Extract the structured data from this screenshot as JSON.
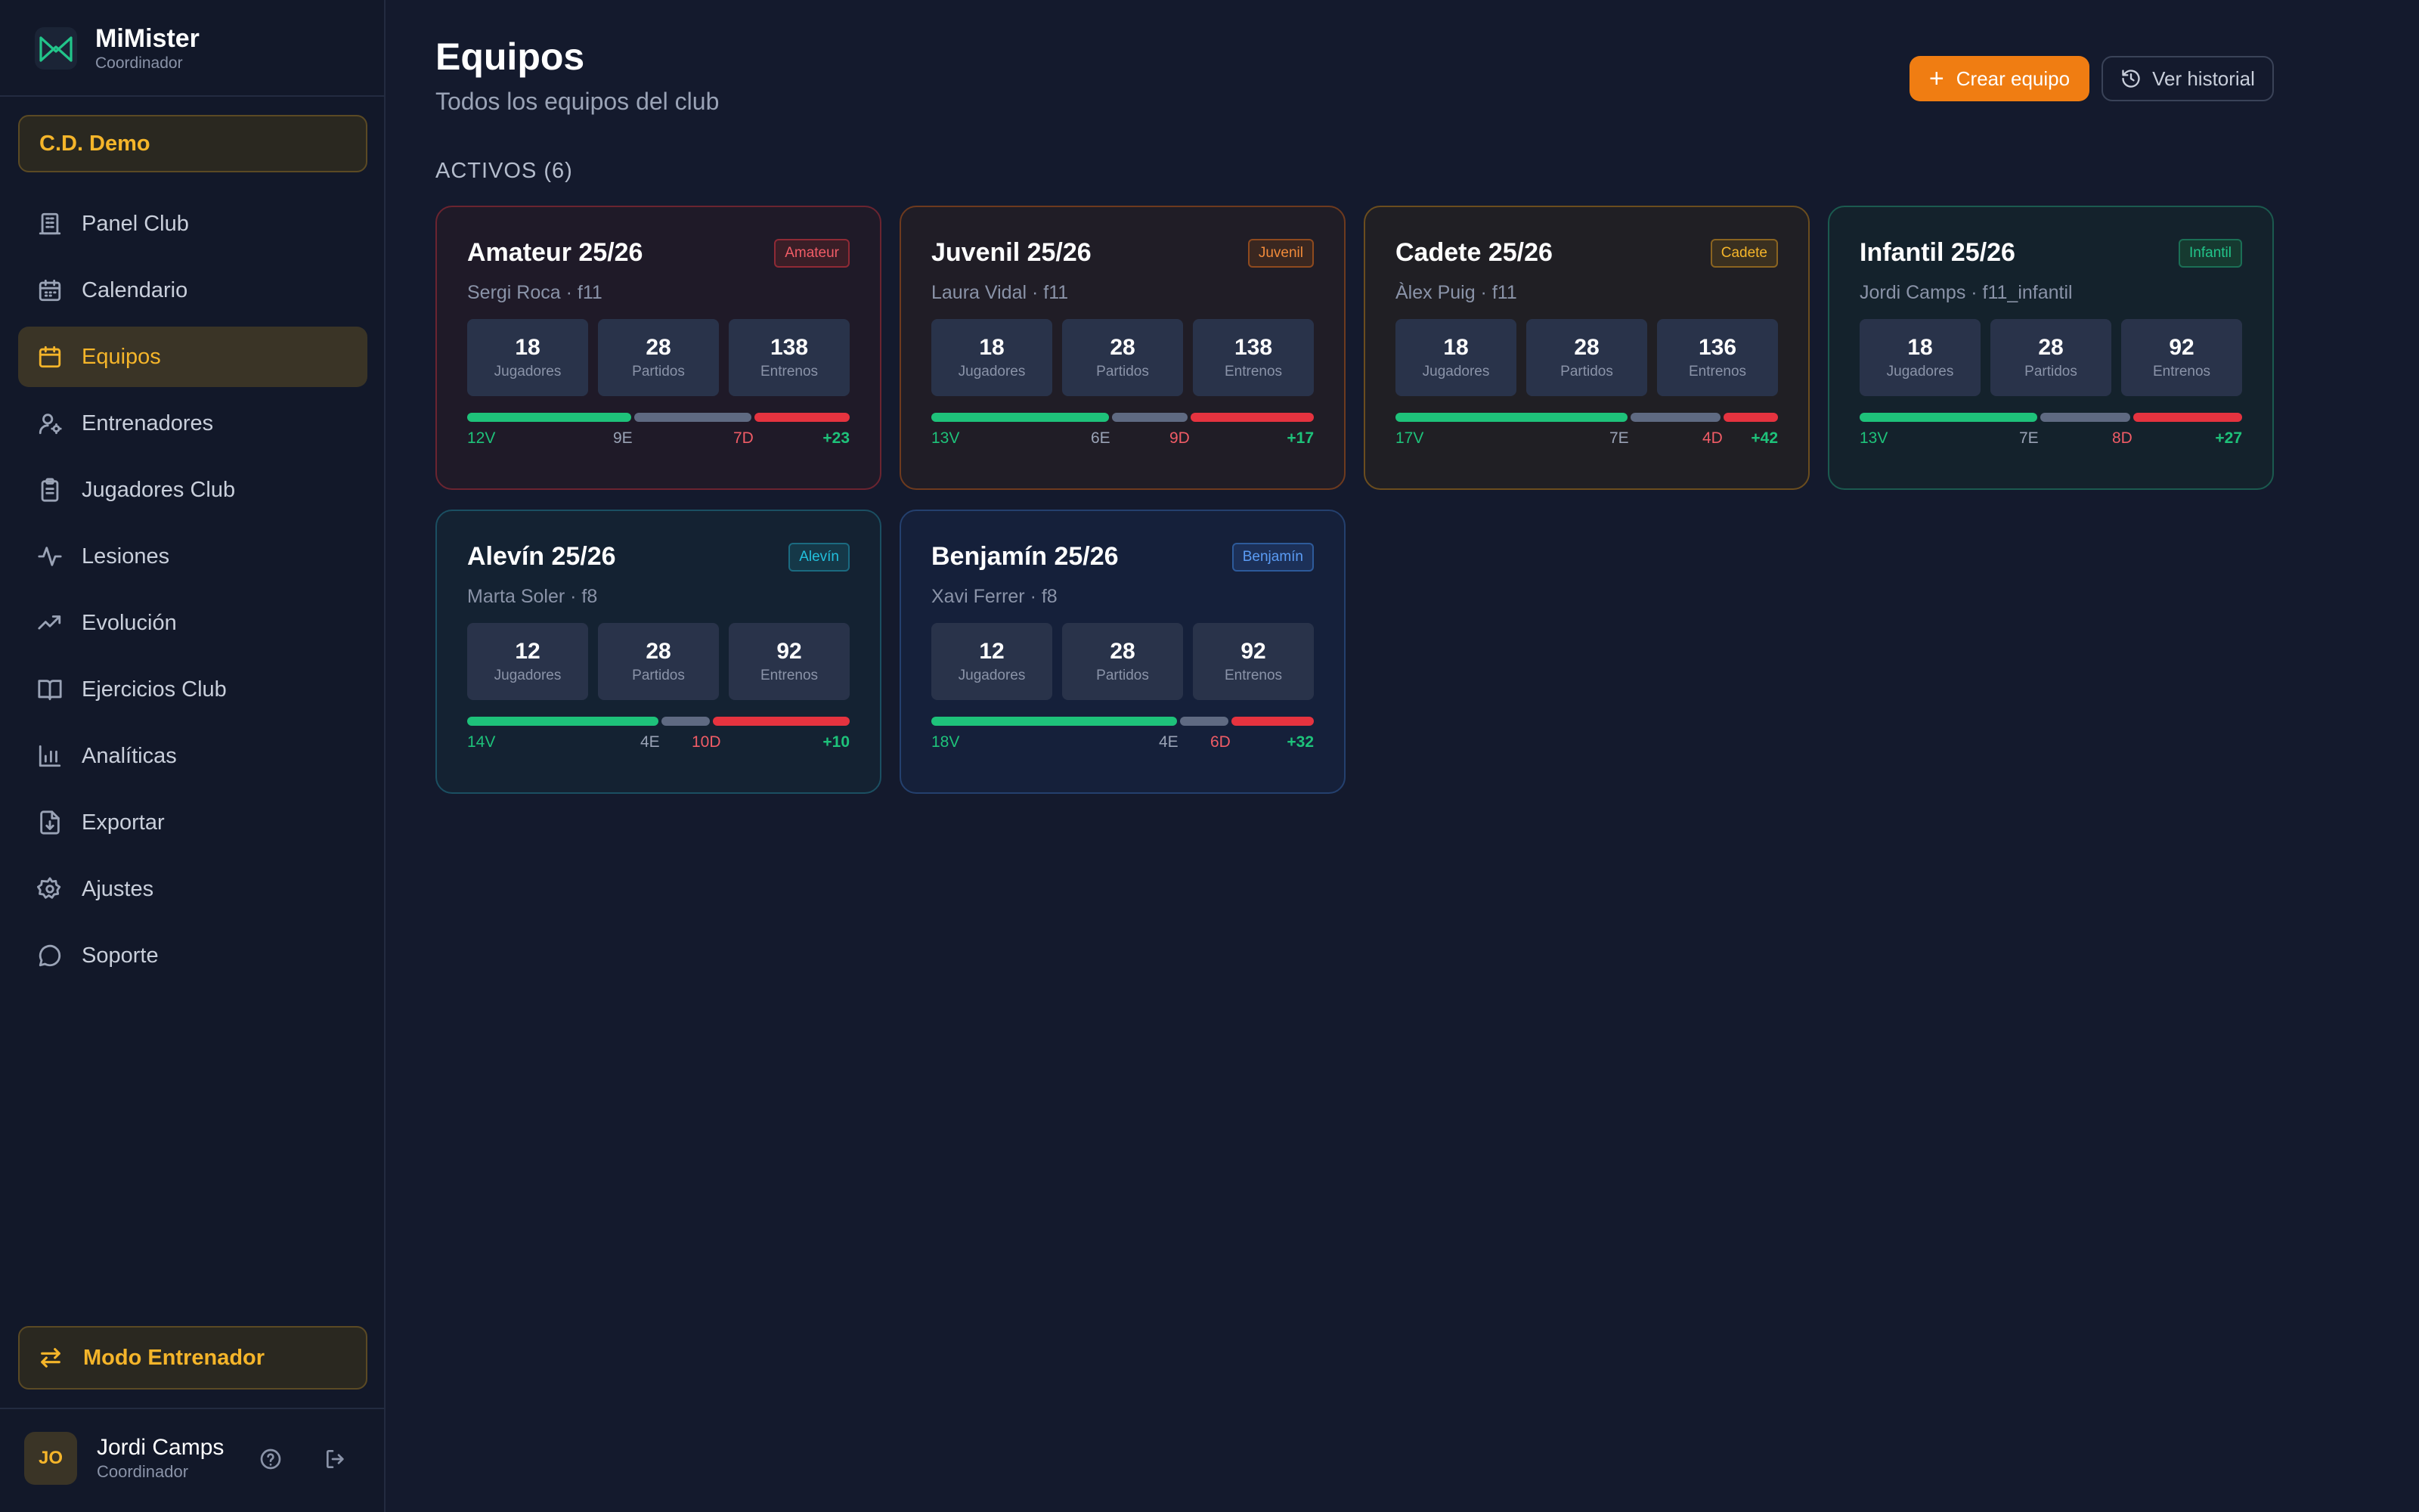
{
  "brand": {
    "name": "MiMister",
    "role": "Coordinador"
  },
  "club": {
    "name": "C.D. Demo"
  },
  "nav": [
    {
      "label": "Panel Club",
      "icon": "building-icon",
      "active": false
    },
    {
      "label": "Calendario",
      "icon": "calendar-icon",
      "active": false
    },
    {
      "label": "Equipos",
      "icon": "calendar-icon",
      "active": true
    },
    {
      "label": "Entrenadores",
      "icon": "user-cog-icon",
      "active": false
    },
    {
      "label": "Jugadores Club",
      "icon": "clipboard-icon",
      "active": false
    },
    {
      "label": "Lesiones",
      "icon": "activity-icon",
      "active": false
    },
    {
      "label": "Evolución",
      "icon": "trending-up-icon",
      "active": false
    },
    {
      "label": "Ejercicios Club",
      "icon": "book-icon",
      "active": false
    },
    {
      "label": "Analíticas",
      "icon": "bar-chart-icon",
      "active": false
    },
    {
      "label": "Exportar",
      "icon": "file-download-icon",
      "active": false
    },
    {
      "label": "Ajustes",
      "icon": "gear-icon",
      "active": false
    },
    {
      "label": "Soporte",
      "icon": "message-icon",
      "active": false
    }
  ],
  "mode_button": {
    "label": "Modo Entrenador"
  },
  "user": {
    "initials": "JO",
    "name": "Jordi Camps",
    "role": "Coordinador"
  },
  "header": {
    "title": "Equipos",
    "subtitle": "Todos los equipos del club",
    "create_label": "Crear equipo",
    "history_label": "Ver historial"
  },
  "section": {
    "label": "ACTIVOS (6)"
  },
  "stat_labels": {
    "players": "Jugadores",
    "matches": "Partidos",
    "trainings": "Entrenos"
  },
  "teams": [
    {
      "name": "Amateur 25/26",
      "badge": "Amateur",
      "coach": "Sergi Roca · f11",
      "players": "18",
      "matches": "28",
      "trainings": "138",
      "wins": 12,
      "draws": 9,
      "losses": 7,
      "w_label": "12V",
      "d_label": "9E",
      "l_label": "7D",
      "diff": "+23",
      "border": "#6b2430",
      "bg": "#1f1a28",
      "badge_color": "#f05c66",
      "badge_border": "#8f2a35",
      "badge_bg": "#3a1e27"
    },
    {
      "name": "Juvenil 25/26",
      "badge": "Juvenil",
      "coach": "Laura Vidal · f11",
      "players": "18",
      "matches": "28",
      "trainings": "138",
      "wins": 13,
      "draws": 6,
      "losses": 9,
      "w_label": "13V",
      "d_label": "6E",
      "l_label": "9D",
      "diff": "+17",
      "border": "#6e3a1e",
      "bg": "#201d26",
      "badge_color": "#f08a3a",
      "badge_border": "#8f4a1e",
      "badge_bg": "#3a2720"
    },
    {
      "name": "Cadete 25/26",
      "badge": "Cadete",
      "coach": "Àlex Puig · f11",
      "players": "18",
      "matches": "28",
      "trainings": "136",
      "wins": 17,
      "draws": 7,
      "losses": 4,
      "w_label": "17V",
      "d_label": "7E",
      "l_label": "4D",
      "diff": "+42",
      "border": "#6b4d1e",
      "bg": "#201f24",
      "badge_color": "#f5b52a",
      "badge_border": "#8a6420",
      "badge_bg": "#3a3020"
    },
    {
      "name": "Infantil 25/26",
      "badge": "Infantil",
      "coach": "Jordi Camps · f11_infantil",
      "players": "18",
      "matches": "28",
      "trainings": "92",
      "wins": 13,
      "draws": 7,
      "losses": 8,
      "w_label": "13V",
      "d_label": "7E",
      "l_label": "8D",
      "diff": "+27",
      "border": "#1b5a4f",
      "bg": "#14222c",
      "badge_color": "#22c58a",
      "badge_border": "#1b6f55",
      "badge_bg": "#163a30"
    },
    {
      "name": "Alevín 25/26",
      "badge": "Alevín",
      "coach": "Marta Soler · f8",
      "players": "12",
      "matches": "28",
      "trainings": "92",
      "wins": 14,
      "draws": 4,
      "losses": 10,
      "w_label": "14V",
      "d_label": "4E",
      "l_label": "10D",
      "diff": "+10",
      "border": "#1b4f62",
      "bg": "#142232",
      "badge_color": "#22c0dd",
      "badge_border": "#1b6a80",
      "badge_bg": "#153848"
    },
    {
      "name": "Benjamín 25/26",
      "badge": "Benjamín",
      "coach": "Xavi Ferrer · f8",
      "players": "12",
      "matches": "28",
      "trainings": "92",
      "wins": 18,
      "draws": 4,
      "losses": 6,
      "w_label": "18V",
      "d_label": "4E",
      "l_label": "6D",
      "diff": "+32",
      "border": "#24406e",
      "bg": "#15203a",
      "badge_color": "#5b9cf5",
      "badge_border": "#2d5a9a",
      "badge_bg": "#1c3058"
    }
  ]
}
